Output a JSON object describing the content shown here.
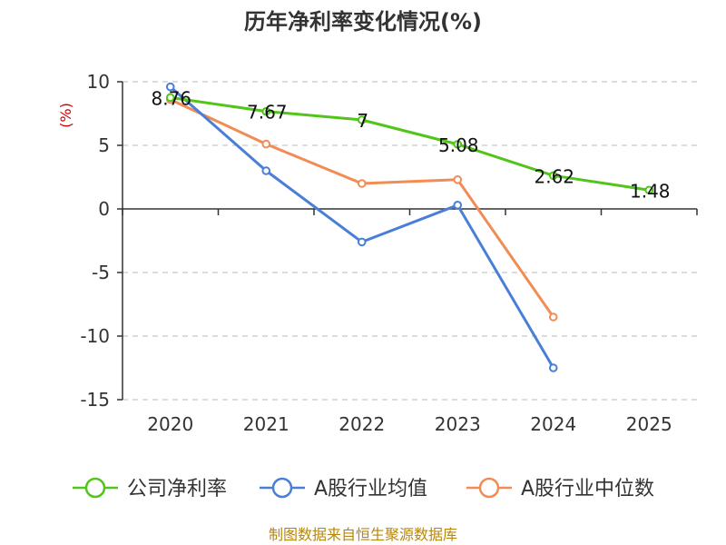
{
  "chart_data": {
    "type": "line",
    "title": "历年净利率变化情况(%)",
    "ylabel": "(%)",
    "xlabel": "",
    "categories": [
      "2020",
      "2021",
      "2022",
      "2023",
      "2024",
      "2025"
    ],
    "ylim": [
      -15,
      10
    ],
    "yticks": [
      10,
      5,
      0,
      -5,
      -10,
      -15
    ],
    "grid": true,
    "legend_position": "bottom",
    "series": [
      {
        "name": "公司净利率",
        "color": "#52c41a",
        "values": [
          8.76,
          7.67,
          7,
          5.08,
          2.62,
          1.48
        ],
        "labels": [
          "8.76",
          "7.67",
          "7",
          "5.08",
          "2.62",
          "1.48"
        ]
      },
      {
        "name": "A股行业均值",
        "color": "#4a7fd8",
        "values": [
          9.6,
          3.0,
          -2.6,
          0.3,
          -12.5,
          null
        ],
        "labels": []
      },
      {
        "name": "A股行业中位数",
        "color": "#f28c54",
        "values": [
          8.6,
          5.1,
          2.0,
          2.3,
          -8.5,
          null
        ],
        "labels": []
      }
    ]
  },
  "source": "制图数据来自恒生聚源数据库"
}
